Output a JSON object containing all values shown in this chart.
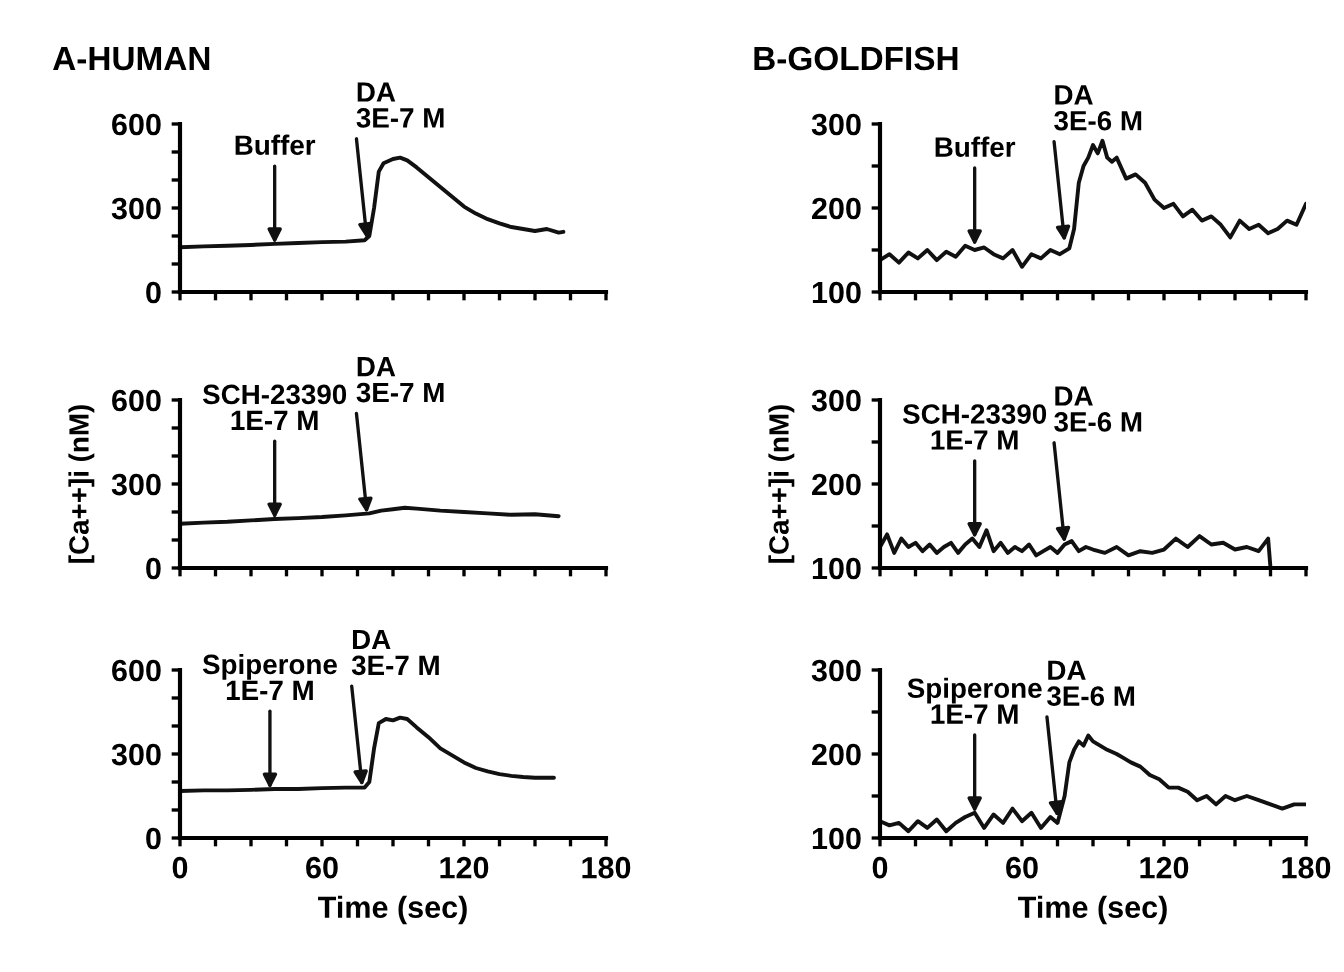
{
  "chart_data": [
    {
      "type": "line",
      "title": "A-HUMAN",
      "tick_labels": "y",
      "color": "#111111",
      "x": [
        0,
        10,
        20,
        30,
        40,
        50,
        60,
        70,
        78,
        80,
        82,
        84,
        86,
        90,
        93,
        96,
        100,
        105,
        110,
        115,
        120,
        125,
        130,
        135,
        140,
        145,
        150,
        155,
        160,
        162
      ],
      "values": [
        160,
        163,
        165,
        168,
        172,
        175,
        178,
        180,
        185,
        200,
        300,
        430,
        460,
        475,
        480,
        470,
        445,
        410,
        375,
        340,
        305,
        280,
        260,
        245,
        232,
        225,
        218,
        225,
        212,
        215
      ],
      "xlim": [
        0,
        180
      ],
      "xticks": [
        0,
        {
          "value": 15,
          "label": null
        },
        {
          "value": 30,
          "label": null
        },
        {
          "value": 45,
          "label": null
        },
        60,
        {
          "value": 75,
          "label": null
        },
        {
          "value": 90,
          "label": null
        },
        {
          "value": 105,
          "label": null
        },
        120,
        {
          "value": 135,
          "label": null
        },
        {
          "value": 150,
          "label": null
        },
        {
          "value": 165,
          "label": null
        },
        180
      ],
      "ylim": [
        0,
        600
      ],
      "yticks": [
        0,
        {
          "value": 100,
          "label": null
        },
        {
          "value": 200,
          "label": null
        },
        300,
        {
          "value": 400,
          "label": null
        },
        {
          "value": 500,
          "label": null
        },
        600
      ],
      "annotations": [
        {
          "text": "Buffer",
          "x": 40,
          "y": 172
        },
        {
          "text": "DA\n3E-7 M",
          "x": 79,
          "y": 190
        }
      ]
    },
    {
      "type": "line",
      "ylabel": "[Ca++]i (nM)",
      "tick_labels": "y",
      "color": "#111111",
      "x": [
        0,
        10,
        20,
        30,
        40,
        50,
        60,
        70,
        80,
        85,
        90,
        95,
        100,
        110,
        120,
        130,
        140,
        150,
        160
      ],
      "values": [
        158,
        162,
        165,
        170,
        175,
        178,
        182,
        188,
        195,
        205,
        210,
        215,
        212,
        205,
        200,
        195,
        190,
        192,
        185
      ],
      "xlim": [
        0,
        180
      ],
      "xticks": [
        0,
        {
          "value": 15,
          "label": null
        },
        {
          "value": 30,
          "label": null
        },
        {
          "value": 45,
          "label": null
        },
        60,
        {
          "value": 75,
          "label": null
        },
        {
          "value": 90,
          "label": null
        },
        {
          "value": 105,
          "label": null
        },
        120,
        {
          "value": 135,
          "label": null
        },
        {
          "value": 150,
          "label": null
        },
        {
          "value": 165,
          "label": null
        },
        180
      ],
      "ylim": [
        0,
        600
      ],
      "yticks": [
        0,
        {
          "value": 100,
          "label": null
        },
        {
          "value": 200,
          "label": null
        },
        300,
        {
          "value": 400,
          "label": null
        },
        {
          "value": 500,
          "label": null
        },
        600
      ],
      "annotations": [
        {
          "text": "SCH-23390\n1E-7 M",
          "x": 40,
          "y": 175
        },
        {
          "text": "DA\n3E-7 M",
          "x": 79,
          "y": 195
        }
      ]
    },
    {
      "type": "line",
      "xlabel": "Time (sec)",
      "color": "#111111",
      "x": [
        0,
        10,
        20,
        30,
        40,
        50,
        60,
        70,
        78,
        80,
        82,
        84,
        87,
        90,
        93,
        96,
        100,
        105,
        110,
        115,
        120,
        125,
        130,
        135,
        140,
        145,
        150,
        158
      ],
      "values": [
        168,
        170,
        170,
        172,
        175,
        175,
        178,
        180,
        180,
        200,
        320,
        410,
        425,
        420,
        430,
        425,
        395,
        360,
        320,
        295,
        270,
        250,
        238,
        228,
        222,
        218,
        215,
        215
      ],
      "xlim": [
        0,
        180
      ],
      "xticks": [
        0,
        {
          "value": 15,
          "label": null
        },
        {
          "value": 30,
          "label": null
        },
        {
          "value": 45,
          "label": null
        },
        60,
        {
          "value": 75,
          "label": null
        },
        {
          "value": 90,
          "label": null
        },
        {
          "value": 105,
          "label": null
        },
        120,
        {
          "value": 135,
          "label": null
        },
        {
          "value": 150,
          "label": null
        },
        {
          "value": 165,
          "label": null
        },
        180
      ],
      "ylim": [
        0,
        600
      ],
      "yticks": [
        0,
        {
          "value": 100,
          "label": null
        },
        {
          "value": 200,
          "label": null
        },
        300,
        {
          "value": 400,
          "label": null
        },
        {
          "value": 500,
          "label": null
        },
        600
      ],
      "annotations": [
        {
          "text": "Spiperone\n1E-7 M",
          "x": 38,
          "y": 175
        },
        {
          "text": "DA\n3E-7 M",
          "x": 77,
          "y": 185
        }
      ]
    },
    {
      "type": "line",
      "title": "B-GOLDFISH",
      "tick_labels": "y",
      "color": "#111111",
      "x": [
        0,
        4,
        8,
        12,
        16,
        20,
        24,
        28,
        32,
        36,
        40,
        44,
        48,
        52,
        56,
        60,
        64,
        68,
        72,
        76,
        80,
        82,
        84,
        86,
        88,
        90,
        92,
        94,
        96,
        98,
        100,
        104,
        108,
        112,
        116,
        120,
        124,
        128,
        132,
        136,
        140,
        144,
        148,
        152,
        156,
        160,
        164,
        168,
        172,
        176,
        180
      ],
      "values": [
        138,
        145,
        135,
        147,
        140,
        150,
        138,
        148,
        142,
        155,
        150,
        153,
        145,
        140,
        150,
        130,
        145,
        140,
        150,
        145,
        152,
        175,
        230,
        250,
        260,
        275,
        265,
        280,
        260,
        255,
        260,
        235,
        240,
        230,
        210,
        200,
        205,
        190,
        198,
        185,
        190,
        180,
        165,
        185,
        175,
        180,
        170,
        175,
        185,
        180,
        205
      ],
      "xlim": [
        0,
        180
      ],
      "xticks": [
        0,
        {
          "value": 15,
          "label": null
        },
        {
          "value": 30,
          "label": null
        },
        {
          "value": 45,
          "label": null
        },
        60,
        {
          "value": 75,
          "label": null
        },
        {
          "value": 90,
          "label": null
        },
        {
          "value": 105,
          "label": null
        },
        120,
        {
          "value": 135,
          "label": null
        },
        {
          "value": 150,
          "label": null
        },
        {
          "value": 165,
          "label": null
        },
        180
      ],
      "ylim": [
        100,
        300
      ],
      "yticks": [
        100,
        {
          "value": 150,
          "label": null
        },
        200,
        {
          "value": 250,
          "label": null
        },
        300
      ],
      "annotations": [
        {
          "text": "Buffer",
          "x": 40,
          "y": 155
        },
        {
          "text": "DA\n3E-6 M",
          "x": 78,
          "y": 160
        }
      ]
    },
    {
      "type": "line",
      "ylabel": "[Ca++]i (nM)",
      "tick_labels": "y",
      "color": "#111111",
      "x": [
        0,
        3,
        6,
        9,
        12,
        15,
        18,
        21,
        24,
        27,
        30,
        33,
        36,
        39,
        42,
        45,
        48,
        51,
        54,
        57,
        60,
        63,
        66,
        69,
        72,
        75,
        78,
        81,
        84,
        87,
        90,
        95,
        100,
        105,
        110,
        115,
        120,
        125,
        130,
        135,
        140,
        145,
        150,
        155,
        160,
        164,
        165
      ],
      "values": [
        125,
        140,
        118,
        135,
        125,
        130,
        120,
        128,
        118,
        125,
        130,
        118,
        128,
        135,
        125,
        145,
        120,
        130,
        118,
        125,
        120,
        128,
        115,
        120,
        125,
        118,
        128,
        132,
        120,
        125,
        122,
        118,
        125,
        115,
        120,
        118,
        122,
        135,
        125,
        138,
        128,
        130,
        122,
        125,
        120,
        135,
        100
      ],
      "xlim": [
        0,
        180
      ],
      "xticks": [
        0,
        {
          "value": 15,
          "label": null
        },
        {
          "value": 30,
          "label": null
        },
        {
          "value": 45,
          "label": null
        },
        60,
        {
          "value": 75,
          "label": null
        },
        {
          "value": 90,
          "label": null
        },
        {
          "value": 105,
          "label": null
        },
        120,
        {
          "value": 135,
          "label": null
        },
        {
          "value": 150,
          "label": null
        },
        {
          "value": 165,
          "label": null
        },
        180
      ],
      "ylim": [
        100,
        300
      ],
      "yticks": [
        100,
        {
          "value": 150,
          "label": null
        },
        200,
        {
          "value": 250,
          "label": null
        },
        300
      ],
      "annotations": [
        {
          "text": "SCH-23390\n1E-7 M",
          "x": 40,
          "y": 135
        },
        {
          "text": "DA\n3E-6 M",
          "x": 78,
          "y": 130
        }
      ]
    },
    {
      "type": "line",
      "xlabel": "Time (sec)",
      "color": "#111111",
      "x": [
        0,
        4,
        8,
        12,
        16,
        20,
        24,
        28,
        32,
        36,
        40,
        44,
        48,
        52,
        56,
        60,
        64,
        68,
        72,
        75,
        78,
        80,
        82,
        84,
        86,
        88,
        90,
        93,
        96,
        100,
        103,
        106,
        110,
        114,
        118,
        122,
        126,
        130,
        134,
        138,
        142,
        146,
        150,
        155,
        160,
        165,
        170,
        175,
        180
      ],
      "values": [
        120,
        115,
        118,
        108,
        120,
        112,
        122,
        108,
        118,
        125,
        130,
        112,
        128,
        118,
        135,
        120,
        130,
        112,
        125,
        118,
        150,
        190,
        205,
        215,
        210,
        222,
        215,
        210,
        205,
        200,
        195,
        190,
        185,
        175,
        170,
        160,
        160,
        155,
        145,
        150,
        140,
        150,
        145,
        150,
        145,
        140,
        135,
        140,
        140
      ],
      "xlim": [
        0,
        180
      ],
      "xticks": [
        0,
        {
          "value": 15,
          "label": null
        },
        {
          "value": 30,
          "label": null
        },
        {
          "value": 45,
          "label": null
        },
        60,
        {
          "value": 75,
          "label": null
        },
        {
          "value": 90,
          "label": null
        },
        {
          "value": 105,
          "label": null
        },
        120,
        {
          "value": 135,
          "label": null
        },
        {
          "value": 150,
          "label": null
        },
        {
          "value": 165,
          "label": null
        },
        180
      ],
      "ylim": [
        100,
        300
      ],
      "yticks": [
        100,
        {
          "value": 150,
          "label": null
        },
        200,
        {
          "value": 250,
          "label": null
        },
        300
      ],
      "annotations": [
        {
          "text": "Spiperone\n1E-7 M",
          "x": 40,
          "y": 130
        },
        {
          "text": "DA\n3E-6 M",
          "x": 75,
          "y": 125
        }
      ]
    }
  ]
}
